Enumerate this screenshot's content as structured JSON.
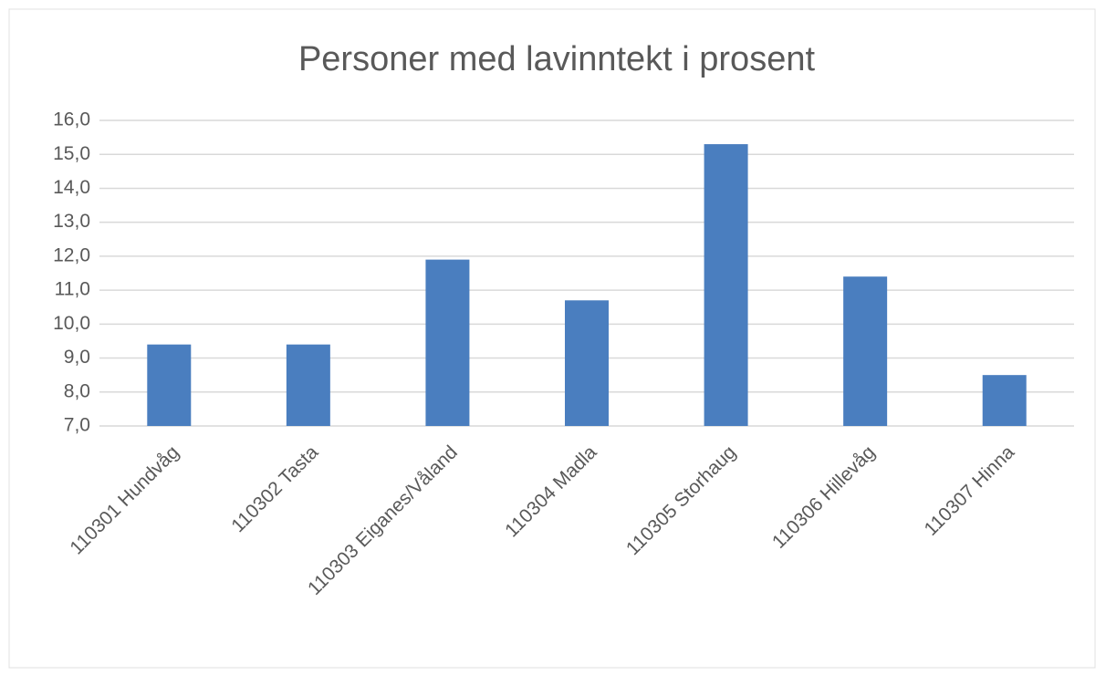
{
  "chart_data": {
    "type": "bar",
    "title": "Personer med lavinntekt i prosent",
    "categories": [
      "110301 Hundvåg",
      "110302 Tasta",
      "110303 Eiganes/Våland",
      "110304 Madla",
      "110305 Storhaug",
      "110306 Hillevåg",
      "110307 Hinna"
    ],
    "values": [
      9.4,
      9.4,
      11.9,
      10.7,
      15.3,
      11.4,
      8.5
    ],
    "color": "#4a7ebf",
    "ylim": [
      7,
      16
    ],
    "yticks": [
      {
        "value": 7,
        "label": "7,0"
      },
      {
        "value": 8,
        "label": "8,0"
      },
      {
        "value": 9,
        "label": "9,0"
      },
      {
        "value": 10,
        "label": "10,0"
      },
      {
        "value": 11,
        "label": "11,0"
      },
      {
        "value": 12,
        "label": "12,0"
      },
      {
        "value": 13,
        "label": "13,0"
      },
      {
        "value": 14,
        "label": "14,0"
      },
      {
        "value": 15,
        "label": "15,0"
      },
      {
        "value": 16,
        "label": "16,0"
      }
    ],
    "grid": true
  }
}
